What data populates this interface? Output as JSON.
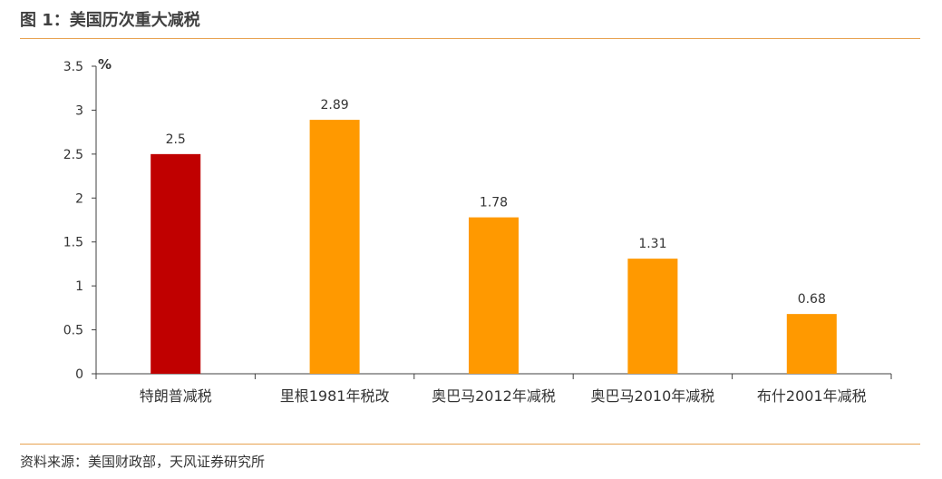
{
  "header": {
    "title": "图 1：美国历次重大减税"
  },
  "footer": {
    "source": "资料来源：美国财政部，天风证券研究所"
  },
  "chart_data": {
    "type": "bar",
    "unit_label": "%",
    "categories": [
      "特朗普减税",
      "里根1981年税改",
      "奥巴马2012年减税",
      "奥巴马2010年减税",
      "布什2001年减税"
    ],
    "values": [
      2.5,
      2.89,
      1.78,
      1.31,
      0.68
    ],
    "value_labels": [
      "2.5",
      "2.89",
      "1.78",
      "1.31",
      "0.68"
    ],
    "bar_colors": [
      "#C00000",
      "#FF9900",
      "#FF9900",
      "#FF9900",
      "#FF9900"
    ],
    "yticks": [
      "0",
      "0.5",
      "1",
      "1.5",
      "2",
      "2.5",
      "3",
      "3.5"
    ],
    "ylim": [
      0,
      3.5
    ],
    "grid": false,
    "legend": "none"
  }
}
